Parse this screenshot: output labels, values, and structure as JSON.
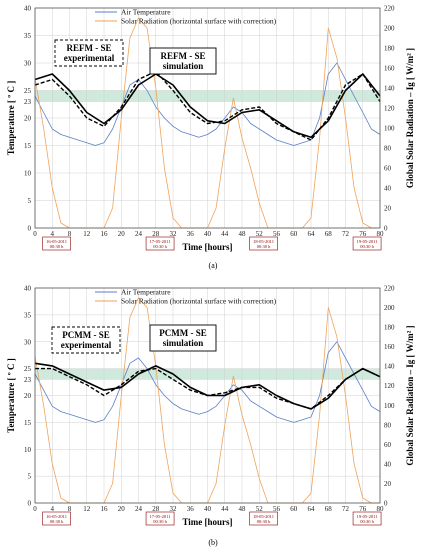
{
  "chart_data": [
    {
      "type": "line",
      "caption": "(a)",
      "xlabel": "Time [hours]",
      "ylabel": "Temperature [ º C ]",
      "y2label": "Global Solar Radiation – Ig [ W/m² ]",
      "xlim": [
        0,
        80
      ],
      "ylim": [
        0,
        40
      ],
      "y2lim": [
        0,
        220
      ],
      "xticks": [
        0,
        4,
        8,
        12,
        16,
        20,
        24,
        28,
        32,
        36,
        40,
        44,
        48,
        52,
        56,
        60,
        64,
        68,
        72,
        76,
        80
      ],
      "yticks": [
        0,
        5,
        10,
        15,
        20,
        23,
        25,
        30,
        35,
        40
      ],
      "y2ticks": [
        0,
        20,
        40,
        60,
        80,
        100,
        120,
        140,
        160,
        180,
        200,
        220
      ],
      "comfort_band": [
        23,
        25
      ],
      "legend": [
        "Air Temperature",
        "Solar Radiation (horizontal surface with correction)"
      ],
      "annotations": [
        {
          "label": "REFM - SE experimental",
          "style": "dashed-box"
        },
        {
          "label": "REFM - SE simulation",
          "style": "solid-box"
        }
      ],
      "dates": [
        {
          "label": "16-05-2011 00:30 h",
          "x": 5
        },
        {
          "label": "17-05-2011 00:30 h",
          "x": 29
        },
        {
          "label": "18-05-2011 00:30 h",
          "x": 53
        },
        {
          "label": "19-05-2011 00:30 h",
          "x": 77
        }
      ],
      "series": [
        {
          "name": "Air Temperature",
          "axis": "left",
          "style": "thin-blue",
          "x": [
            0,
            2,
            4,
            6,
            8,
            10,
            12,
            14,
            16,
            18,
            20,
            22,
            24,
            26,
            28,
            30,
            32,
            34,
            36,
            38,
            40,
            42,
            44,
            46,
            48,
            50,
            52,
            54,
            56,
            58,
            60,
            62,
            64,
            66,
            68,
            70,
            72,
            74,
            76,
            78,
            80
          ],
          "y": [
            24,
            21,
            18,
            17,
            16.5,
            16,
            15.5,
            15,
            15.5,
            18,
            22,
            26,
            27,
            25,
            22,
            20,
            18.5,
            17.5,
            17,
            16.5,
            17,
            18,
            20,
            22,
            21,
            19,
            18,
            17,
            16,
            15.5,
            15,
            15.5,
            16,
            20,
            28,
            30,
            27,
            24,
            21,
            18,
            17
          ]
        },
        {
          "name": "Solar Radiation (horizontal surface with correction)",
          "axis": "right",
          "style": "thin-orange",
          "x": [
            0,
            2,
            4,
            6,
            8,
            10,
            12,
            14,
            16,
            18,
            20,
            22,
            24,
            26,
            28,
            30,
            32,
            34,
            36,
            38,
            40,
            42,
            44,
            46,
            48,
            50,
            52,
            54,
            56,
            58,
            60,
            62,
            64,
            66,
            68,
            70,
            72,
            74,
            76,
            78,
            80
          ],
          "y": [
            150,
            100,
            40,
            5,
            0,
            0,
            0,
            0,
            0,
            20,
            110,
            190,
            210,
            200,
            140,
            60,
            10,
            0,
            0,
            0,
            0,
            20,
            80,
            130,
            90,
            60,
            25,
            0,
            0,
            0,
            0,
            0,
            10,
            90,
            200,
            170,
            110,
            40,
            5,
            0,
            0
          ]
        },
        {
          "name": "REFM - SE experimental",
          "axis": "left",
          "style": "dashed-black",
          "x": [
            0,
            4,
            8,
            12,
            16,
            20,
            24,
            28,
            32,
            36,
            40,
            44,
            48,
            52,
            56,
            60,
            64,
            68,
            72,
            76,
            80
          ],
          "y": [
            26,
            27,
            24,
            20,
            18.5,
            22,
            27,
            28.5,
            25,
            21,
            19,
            19.5,
            21.5,
            22,
            19,
            17.5,
            16,
            20,
            26,
            28,
            23
          ]
        },
        {
          "name": "REFM - SE simulation",
          "axis": "left",
          "style": "solid-black",
          "x": [
            0,
            4,
            8,
            12,
            16,
            20,
            24,
            28,
            32,
            36,
            40,
            44,
            48,
            52,
            56,
            60,
            64,
            68,
            72,
            76,
            80
          ],
          "y": [
            27,
            28,
            25,
            21,
            19,
            21.5,
            26,
            28,
            26,
            22,
            19.5,
            19,
            21,
            21.5,
            19.5,
            17.5,
            16.5,
            19.5,
            25,
            28,
            24
          ]
        }
      ]
    },
    {
      "type": "line",
      "caption": "(b)",
      "xlabel": "Time [hours]",
      "ylabel": "Temperature [ º C ]",
      "y2label": "Global Solar Radiation – Ig [ W/m² ]",
      "xlim": [
        0,
        80
      ],
      "ylim": [
        0,
        40
      ],
      "y2lim": [
        0,
        220
      ],
      "xticks": [
        0,
        4,
        8,
        12,
        16,
        20,
        24,
        28,
        32,
        36,
        40,
        44,
        48,
        52,
        56,
        60,
        64,
        68,
        72,
        76,
        80
      ],
      "yticks": [
        0,
        5,
        10,
        15,
        20,
        23,
        25,
        30,
        35,
        40
      ],
      "y2ticks": [
        0,
        20,
        40,
        60,
        80,
        100,
        120,
        140,
        160,
        180,
        200,
        220
      ],
      "comfort_band": [
        23,
        25
      ],
      "legend": [
        "Air Temperature",
        "Solar Radiation (horizontal surface with correction)"
      ],
      "annotations": [
        {
          "label": "PCMM - SE experimental",
          "style": "dashed-box"
        },
        {
          "label": "PCMM - SE simulation",
          "style": "solid-box"
        }
      ],
      "dates": [
        {
          "label": "16-05-2011 00:30 h",
          "x": 5
        },
        {
          "label": "17-05-2011 00:30 h",
          "x": 29
        },
        {
          "label": "18-05-2011 00:30 h",
          "x": 53
        },
        {
          "label": "19-05-2011 00:30 h",
          "x": 77
        }
      ],
      "series": [
        {
          "name": "Air Temperature",
          "axis": "left",
          "style": "thin-blue",
          "x": [
            0,
            2,
            4,
            6,
            8,
            10,
            12,
            14,
            16,
            18,
            20,
            22,
            24,
            26,
            28,
            30,
            32,
            34,
            36,
            38,
            40,
            42,
            44,
            46,
            48,
            50,
            52,
            54,
            56,
            58,
            60,
            62,
            64,
            66,
            68,
            70,
            72,
            74,
            76,
            78,
            80
          ],
          "y": [
            24,
            21,
            18,
            17,
            16.5,
            16,
            15.5,
            15,
            15.5,
            18,
            22,
            26,
            27,
            25,
            22,
            20,
            18.5,
            17.5,
            17,
            16.5,
            17,
            18,
            20,
            22,
            21,
            19,
            18,
            17,
            16,
            15.5,
            15,
            15.5,
            16,
            20,
            28,
            30,
            27,
            24,
            21,
            18,
            17
          ]
        },
        {
          "name": "Solar Radiation (horizontal surface with correction)",
          "axis": "right",
          "style": "thin-orange",
          "x": [
            0,
            2,
            4,
            6,
            8,
            10,
            12,
            14,
            16,
            18,
            20,
            22,
            24,
            26,
            28,
            30,
            32,
            34,
            36,
            38,
            40,
            42,
            44,
            46,
            48,
            50,
            52,
            54,
            56,
            58,
            60,
            62,
            64,
            66,
            68,
            70,
            72,
            74,
            76,
            78,
            80
          ],
          "y": [
            150,
            100,
            40,
            5,
            0,
            0,
            0,
            0,
            0,
            20,
            110,
            190,
            210,
            200,
            140,
            60,
            10,
            0,
            0,
            0,
            0,
            20,
            80,
            130,
            90,
            60,
            25,
            0,
            0,
            0,
            0,
            0,
            10,
            90,
            200,
            170,
            110,
            40,
            5,
            0,
            0
          ]
        },
        {
          "name": "PCMM - SE experimental",
          "axis": "left",
          "style": "dashed-black",
          "x": [
            0,
            4,
            8,
            12,
            16,
            20,
            24,
            28,
            32,
            36,
            40,
            44,
            48,
            52,
            56,
            60,
            64,
            68,
            72,
            76,
            80
          ],
          "y": [
            25,
            25,
            23.5,
            22,
            20,
            22,
            24.5,
            25,
            23,
            21,
            20,
            20.5,
            21.5,
            21.5,
            19.5,
            18.5,
            17.5,
            20,
            23,
            25,
            23.5
          ]
        },
        {
          "name": "PCMM - SE simulation",
          "axis": "left",
          "style": "solid-black",
          "x": [
            0,
            4,
            8,
            12,
            16,
            20,
            24,
            28,
            32,
            36,
            40,
            44,
            48,
            52,
            56,
            60,
            64,
            68,
            72,
            76,
            80
          ],
          "y": [
            26,
            25.5,
            24,
            22.5,
            21,
            21.5,
            24,
            25.5,
            24,
            21.5,
            20,
            20,
            21.5,
            22,
            20,
            18.5,
            17.5,
            19.5,
            23,
            25,
            23.5
          ]
        }
      ]
    }
  ]
}
